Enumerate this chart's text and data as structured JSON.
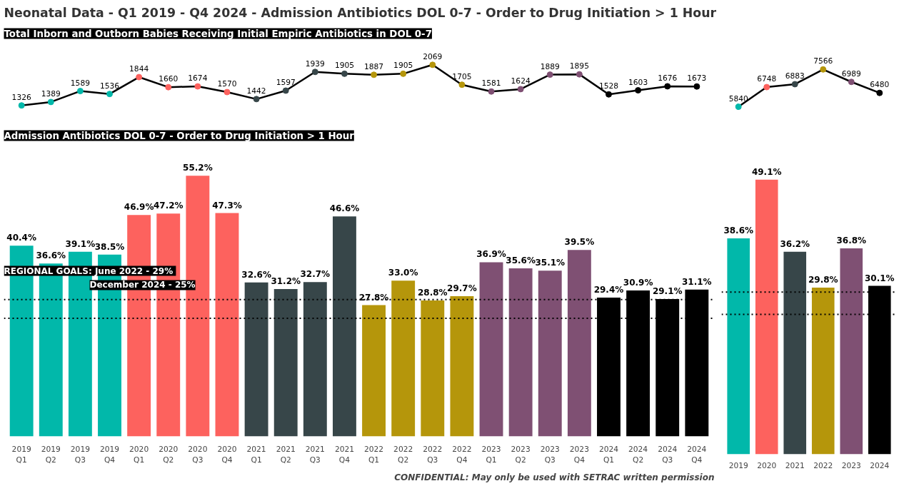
{
  "chart_data": [
    {
      "type": "line",
      "title": "Neonatal Data - Q1 2019 - Q4 2024 - Admission Antibiotics DOL 0-7 - Order to Drug Initiation > 1 Hour",
      "subtitle": "Total Inborn and Outborn Babies Receiving Initial Empiric Antibiotics in DOL 0-7",
      "categories": [
        null,
        null,
        null,
        null,
        null,
        null,
        null,
        null,
        null,
        null,
        null,
        null,
        null,
        null,
        null,
        null,
        null,
        null,
        null,
        null,
        null,
        null,
        null,
        null
      ],
      "series": [
        {
          "color": "#000000",
          "values": [
            1326,
            1389,
            1589,
            1536,
            1844,
            1660,
            1674,
            1570,
            1442,
            1597,
            1939,
            1905,
            1887,
            1905,
            2069,
            1705,
            1581,
            1624,
            1889,
            1895,
            1528,
            1603,
            1676,
            1673
          ]
        }
      ],
      "colors": [
        "#01b8aa",
        "#01b8aa",
        "#01b8aa",
        "#01b8aa",
        "#fd625e",
        "#fd625e",
        "#fd625e",
        "#fd625e",
        "#374649",
        "#374649",
        "#374649",
        "#374649",
        "#b5960b",
        "#b5960b",
        "#b5960b",
        "#b5960b",
        "#7f5073",
        "#7f5073",
        "#7f5073",
        "#7f5073",
        "#000000",
        "#000000",
        "#000000",
        "#000000"
      ],
      "marker": "circle",
      "data_labels": true,
      "tick_labels": false
    },
    {
      "type": "line",
      "categories": [
        null,
        null,
        null,
        null,
        null,
        null
      ],
      "series": [
        {
          "color": "#000000",
          "values": [
            5840,
            6748,
            6883,
            7566,
            6989,
            6480
          ]
        }
      ],
      "colors": [
        "#01b8aa",
        "#fd625e",
        "#374649",
        "#b5960b",
        "#7f5073",
        "#000000"
      ],
      "marker": "circle",
      "data_labels": true,
      "tick_labels": false
    },
    {
      "type": "bar",
      "title": "Admission Antibiotics DOL 0-7 - Order to Drug Initiation > 1 Hour",
      "categories": [
        "2019 Q1",
        "2019 Q2",
        "2019 Q3",
        "2019 Q4",
        "2020 Q1",
        "2020 Q2",
        "2020 Q3",
        "2020 Q4",
        "2021 Q1",
        "2021 Q2",
        "2021 Q3",
        "2021 Q4",
        "2022 Q1",
        "2022 Q2",
        "2022 Q3",
        "2022 Q4",
        "2023 Q1",
        "2023 Q2",
        "2023 Q3",
        "2023 Q4",
        "2024 Q1",
        "2024 Q2",
        "2024 Q3",
        "2024 Q4"
      ],
      "values": [
        40.4,
        36.6,
        39.1,
        38.5,
        46.9,
        47.2,
        55.2,
        47.3,
        32.6,
        31.2,
        32.7,
        46.6,
        27.8,
        33.0,
        28.8,
        29.7,
        36.9,
        35.6,
        35.1,
        39.5,
        29.4,
        30.9,
        29.1,
        31.1
      ],
      "value_labels": [
        "40.4%",
        "36.6%",
        "39.1%",
        "38.5%",
        "46.9%",
        "47.2%",
        "55.2%",
        "47.3%",
        "32.6%",
        "31.2%",
        "32.7%",
        "46.6%",
        "27.8%",
        "33.0%",
        "28.8%",
        "29.7%",
        "36.9%",
        "35.6%",
        "35.1%",
        "39.5%",
        "29.4%",
        "30.9%",
        "29.1%",
        "31.1%"
      ],
      "colors": [
        "#01b8aa",
        "#01b8aa",
        "#01b8aa",
        "#01b8aa",
        "#fd625e",
        "#fd625e",
        "#fd625e",
        "#fd625e",
        "#374649",
        "#374649",
        "#374649",
        "#374649",
        "#b5960b",
        "#b5960b",
        "#b5960b",
        "#b5960b",
        "#7f5073",
        "#7f5073",
        "#7f5073",
        "#7f5073",
        "#000000",
        "#000000",
        "#000000",
        "#000000"
      ],
      "ref_lines": [
        {
          "axis": "y",
          "value": 29,
          "color": "#000000",
          "line_style": "dotted"
        },
        {
          "axis": "y",
          "value": 25,
          "color": "#000000",
          "line_style": "dotted"
        }
      ],
      "annotations": [
        "REGIONAL GOALS:  June 2022 - 29%",
        "December 2024 - 25%",
        "CONFIDENTIAL: May only be used with SETRAC written permission"
      ],
      "tick_labels": "x"
    },
    {
      "type": "bar",
      "categories": [
        "2019",
        "2020",
        "2021",
        "2022",
        "2023",
        "2024"
      ],
      "values": [
        38.6,
        49.1,
        36.2,
        29.8,
        36.8,
        30.1
      ],
      "value_labels": [
        "38.6%",
        "49.1%",
        "36.2%",
        "29.8%",
        "36.8%",
        "30.1%"
      ],
      "colors": [
        "#01b8aa",
        "#fd625e",
        "#374649",
        "#b5960b",
        "#7f5073",
        "#000000"
      ],
      "ref_lines": [
        {
          "axis": "y",
          "value": 29,
          "color": "#000000",
          "line_style": "dotted"
        },
        {
          "axis": "y",
          "value": 25,
          "color": "#000000",
          "line_style": "dotted"
        }
      ],
      "tick_labels": "x"
    }
  ]
}
